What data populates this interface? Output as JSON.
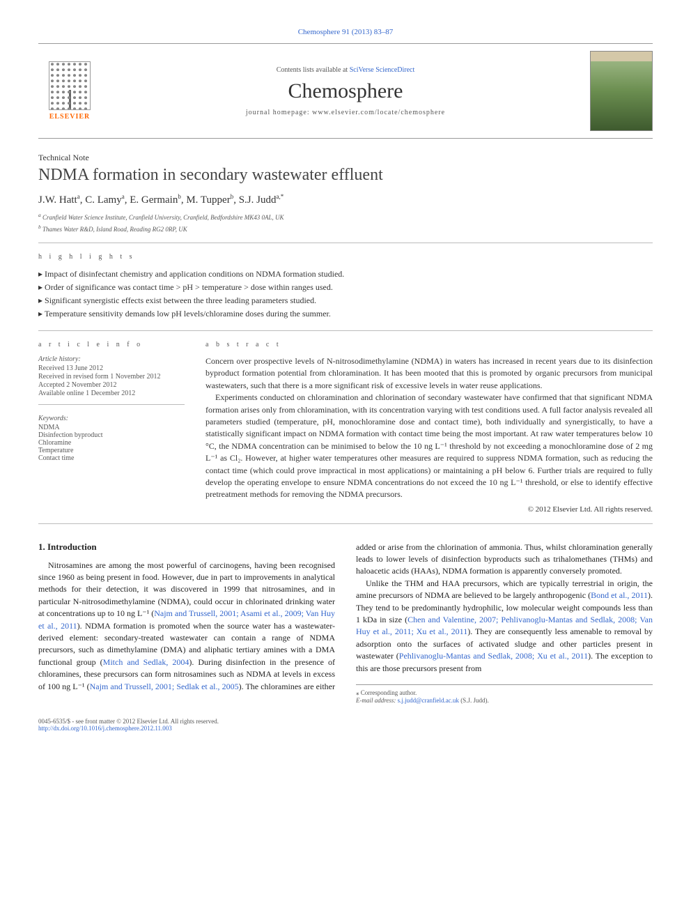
{
  "header": {
    "citation": "Chemosphere 91 (2013) 83–87",
    "contents_prefix": "Contents lists available at ",
    "contents_link": "SciVerse ScienceDirect",
    "journal": "Chemosphere",
    "homepage_prefix": "journal homepage: ",
    "homepage": "www.elsevier.com/locate/chemosphere",
    "elsevier": "ELSEVIER"
  },
  "article": {
    "type": "Technical Note",
    "title": "NDMA formation in secondary wastewater effluent",
    "authors_html": "J.W. Hatt",
    "authors": [
      {
        "name": "J.W. Hatt",
        "sup": "a"
      },
      {
        "name": "C. Lamy",
        "sup": "a"
      },
      {
        "name": "E. Germain",
        "sup": "b"
      },
      {
        "name": "M. Tupper",
        "sup": "b"
      },
      {
        "name": "S.J. Judd",
        "sup": "a,*"
      }
    ],
    "affiliations": [
      {
        "sup": "a",
        "text": "Cranfield Water Science Institute, Cranfield University, Cranfield, Bedfordshire MK43 0AL, UK"
      },
      {
        "sup": "b",
        "text": "Thames Water R&D, Island Road, Reading RG2 0RP, UK"
      }
    ]
  },
  "highlights": {
    "heading": "h i g h l i g h t s",
    "items": [
      "Impact of disinfectant chemistry and application conditions on NDMA formation studied.",
      "Order of significance was contact time > pH > temperature > dose within ranges used.",
      "Significant synergistic effects exist between the three leading parameters studied.",
      "Temperature sensitivity demands low pH levels/chloramine doses during the summer."
    ]
  },
  "article_info": {
    "heading": "a r t i c l e   i n f o",
    "history_label": "Article history:",
    "history": [
      "Received 13 June 2012",
      "Received in revised form 1 November 2012",
      "Accepted 2 November 2012",
      "Available online 1 December 2012"
    ],
    "keywords_label": "Keywords:",
    "keywords": [
      "NDMA",
      "Disinfection byproduct",
      "Chloramine",
      "Temperature",
      "Contact time"
    ]
  },
  "abstract": {
    "heading": "a b s t r a c t",
    "paragraphs": [
      "Concern over prospective levels of N-nitrosodimethylamine (NDMA) in waters has increased in recent years due to its disinfection byproduct formation potential from chloramination. It has been mooted that this is promoted by organic precursors from municipal wastewaters, such that there is a more significant risk of excessive levels in water reuse applications.",
      "Experiments conducted on chloramination and chlorination of secondary wastewater have confirmed that that significant NDMA formation arises only from chloramination, with its concentration varying with test conditions used. A full factor analysis revealed all parameters studied (temperature, pH, monochloramine dose and contact time), both individually and synergistically, to have a statistically significant impact on NDMA formation with contact time being the most important. At raw water temperatures below 10 °C, the NDMA concentration can be minimised to below the 10 ng L⁻¹ threshold by not exceeding a monochloramine dose of 2 mg L⁻¹ as Cl₂. However, at higher water temperatures other measures are required to suppress NDMA formation, such as reducing the contact time (which could prove impractical in most applications) or maintaining a pH below 6. Further trials are required to fully develop the operating envelope to ensure NDMA concentrations do not exceed the 10 ng L⁻¹ threshold, or else to identify effective pretreatment methods for removing the NDMA precursors."
    ],
    "copyright": "© 2012 Elsevier Ltd. All rights reserved."
  },
  "body": {
    "section_heading": "1. Introduction",
    "col1_p1_a": "Nitrosamines are among the most powerful of carcinogens, having been recognised since 1960 as being present in food. However, due in part to improvements in analytical methods for their detection, it was discovered in 1999 that nitrosamines, and in particular N-nitrosodimethylamine (NDMA), could occur in chlorinated drinking water at concentrations up to 10 ng L⁻¹ (",
    "col1_ref1": "Najm and Trussell, 2001; Asami et al., 2009; Van Huy et al., 2011",
    "col1_p1_b": "). NDMA formation is promoted when the source water has a wastewater-derived element: secondary-treated wastewater can contain a range of NDMA precursors, such as dimethylamine (DMA) and aliphatic tertiary amines with a DMA functional group (",
    "col1_ref2": "Mitch and Sedlak, 2004",
    "col1_p1_c": "). During disinfection in the presence of ",
    "col2_p1_a": "chloramines, these precursors can form nitrosamines such as NDMA at levels in excess of 100 ng L⁻¹ (",
    "col2_ref1": "Najm and Trussell, 2001; Sedlak et al., 2005",
    "col2_p1_b": "). The chloramines are either added or arise from the chlorination of ammonia. Thus, whilst chloramination generally leads to lower levels of disinfection byproducts such as trihalomethanes (THMs) and haloacetic acids (HAAs), NDMA formation is apparently conversely promoted.",
    "col2_p2_a": "Unlike the THM and HAA precursors, which are typically terrestrial in origin, the amine precursors of NDMA are believed to be largely anthropogenic (",
    "col2_ref2": "Bond et al., 2011",
    "col2_p2_b": "). They tend to be predominantly hydrophilic, low molecular weight compounds less than 1 kDa in size (",
    "col2_ref3": "Chen and Valentine, 2007; Pehlivanoglu-Mantas and Sedlak, 2008; Van Huy et al., 2011; Xu et al., 2011",
    "col2_p2_c": "). They are consequently less amenable to removal by adsorption onto the surfaces of activated sludge and other particles present in wastewater (",
    "col2_ref4": "Pehlivanoglu-Mantas and Sedlak, 2008; Xu et al., 2011",
    "col2_p2_d": "). The exception to this are those precursors present from"
  },
  "footnote": {
    "corr": "⁎ Corresponding author.",
    "email_label": "E-mail address: ",
    "email": "s.j.judd@cranfield.ac.uk",
    "email_suffix": " (S.J. Judd)."
  },
  "footer": {
    "line1": "0045-6535/$ - see front matter © 2012 Elsevier Ltd. All rights reserved.",
    "doi": "http://dx.doi.org/10.1016/j.chemosphere.2012.11.003"
  },
  "colors": {
    "link": "#3366cc",
    "elsevier_orange": "#ff6600",
    "text": "#1a1a1a",
    "muted": "#555555",
    "rule": "#bbbbbb"
  }
}
